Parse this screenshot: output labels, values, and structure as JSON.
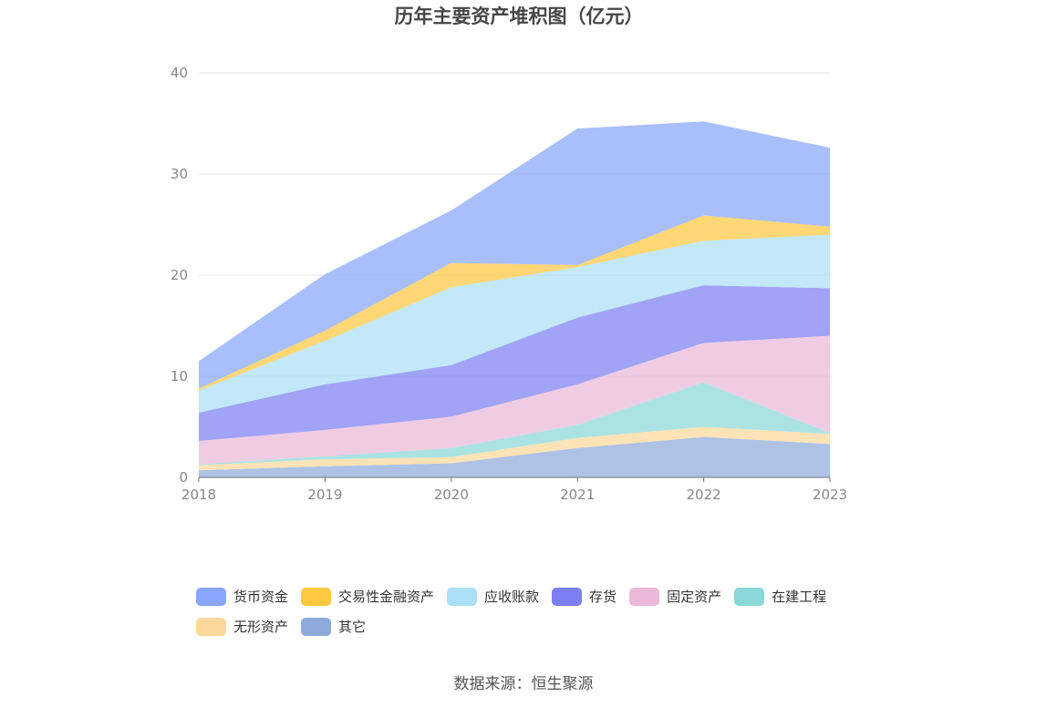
{
  "chart_data": {
    "type": "area",
    "stacked": true,
    "title": "历年主要资产堆积图（亿元）",
    "categories": [
      "2018",
      "2019",
      "2020",
      "2021",
      "2022",
      "2023"
    ],
    "ylim": [
      0,
      40
    ],
    "yticks": [
      0,
      10,
      20,
      30,
      40
    ],
    "grid": true,
    "legend_position": "bottom",
    "source": "数据来源：恒生聚源",
    "series": [
      {
        "name": "其它",
        "color": "#8eaadb",
        "values": [
          0.7,
          1.1,
          1.4,
          2.9,
          4.0,
          3.3
        ]
      },
      {
        "name": "无形资产",
        "color": "#fcd89a",
        "values": [
          0.5,
          0.7,
          0.6,
          1.0,
          1.0,
          1.0
        ]
      },
      {
        "name": "在建工程",
        "color": "#8ad8d8",
        "values": [
          0.1,
          0.3,
          0.9,
          1.3,
          4.4,
          0.1
        ]
      },
      {
        "name": "固定资产",
        "color": "#eab8d8",
        "values": [
          2.3,
          2.6,
          3.1,
          4.0,
          3.9,
          9.6
        ]
      },
      {
        "name": "存货",
        "color": "#7b7ff2",
        "values": [
          2.8,
          4.5,
          5.1,
          6.6,
          5.7,
          4.7
        ]
      },
      {
        "name": "应收账款",
        "color": "#aadff7",
        "values": [
          2.2,
          4.3,
          7.7,
          5.0,
          4.4,
          5.3
        ]
      },
      {
        "name": "交易性金融资产",
        "color": "#ffc840",
        "values": [
          0.2,
          1.0,
          2.4,
          0.2,
          2.5,
          0.8
        ]
      },
      {
        "name": "货币资金",
        "color": "#88a6fb",
        "values": [
          2.7,
          5.6,
          5.2,
          13.5,
          9.3,
          7.8
        ]
      }
    ]
  }
}
